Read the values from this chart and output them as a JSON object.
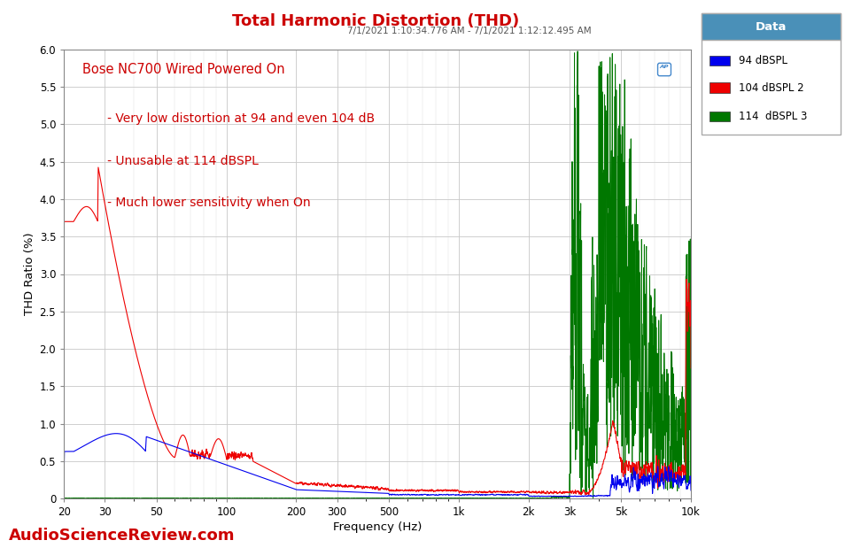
{
  "title": "Total Harmonic Distortion (THD)",
  "subtitle": "7/1/2021 1:10:34.776 AM - 7/1/2021 1:12:12.495 AM",
  "xlabel": "Frequency (Hz)",
  "ylabel": "THD Ratio (%)",
  "ylim": [
    0,
    6.0
  ],
  "bg_color": "#ffffff",
  "plot_bg_color": "#ffffff",
  "grid_color": "#c8c8c8",
  "title_color": "#cc0000",
  "subtitle_color": "#555555",
  "annotation_color": "#cc0000",
  "annotation_lines": [
    "Bose NC700 Wired Powered On",
    "",
    "   - Very low distortion at 94 and even 104 dB",
    "",
    "   - Unusable at 114 dBSPL",
    "",
    "   - Much lower sensitivity when On"
  ],
  "watermark": "AudioScienceReview.com",
  "legend_title": "Data",
  "legend_title_bg": "#4a90b8",
  "series": [
    {
      "label": "94 dBSPL",
      "color": "#0000ee"
    },
    {
      "label": "104 dBSPL 2",
      "color": "#ee0000"
    },
    {
      "label": "114  dBSPL 3",
      "color": "#007700"
    }
  ]
}
